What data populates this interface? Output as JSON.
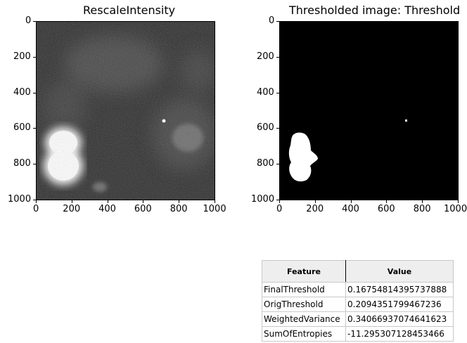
{
  "figure": {
    "left_title_top_partial": "",
    "left_title": "RescaleIntensity",
    "right_title": "Thresholded image: Threshold",
    "left_axes": {
      "xticks": [
        "0",
        "200",
        "400",
        "600",
        "800",
        "1000"
      ],
      "yticks": [
        "0",
        "200",
        "400",
        "600",
        "800",
        "1000"
      ]
    },
    "right_axes": {
      "xticks": [
        "0",
        "200",
        "400",
        "600",
        "800",
        "1000"
      ],
      "yticks": [
        "0",
        "200",
        "400",
        "600",
        "800",
        "1000"
      ]
    },
    "axis_range": [
      0,
      1000
    ]
  },
  "table": {
    "headers": [
      "Feature",
      "Value"
    ],
    "rows": [
      {
        "feature": "FinalThreshold",
        "value": "0.16754814395737888"
      },
      {
        "feature": "OrigThreshold",
        "value": "0.2094351799467236"
      },
      {
        "feature": "WeightedVariance",
        "value": "0.34066937074641623"
      },
      {
        "feature": "SumOfEntropies",
        "value": "-11.295307128453466"
      }
    ]
  }
}
